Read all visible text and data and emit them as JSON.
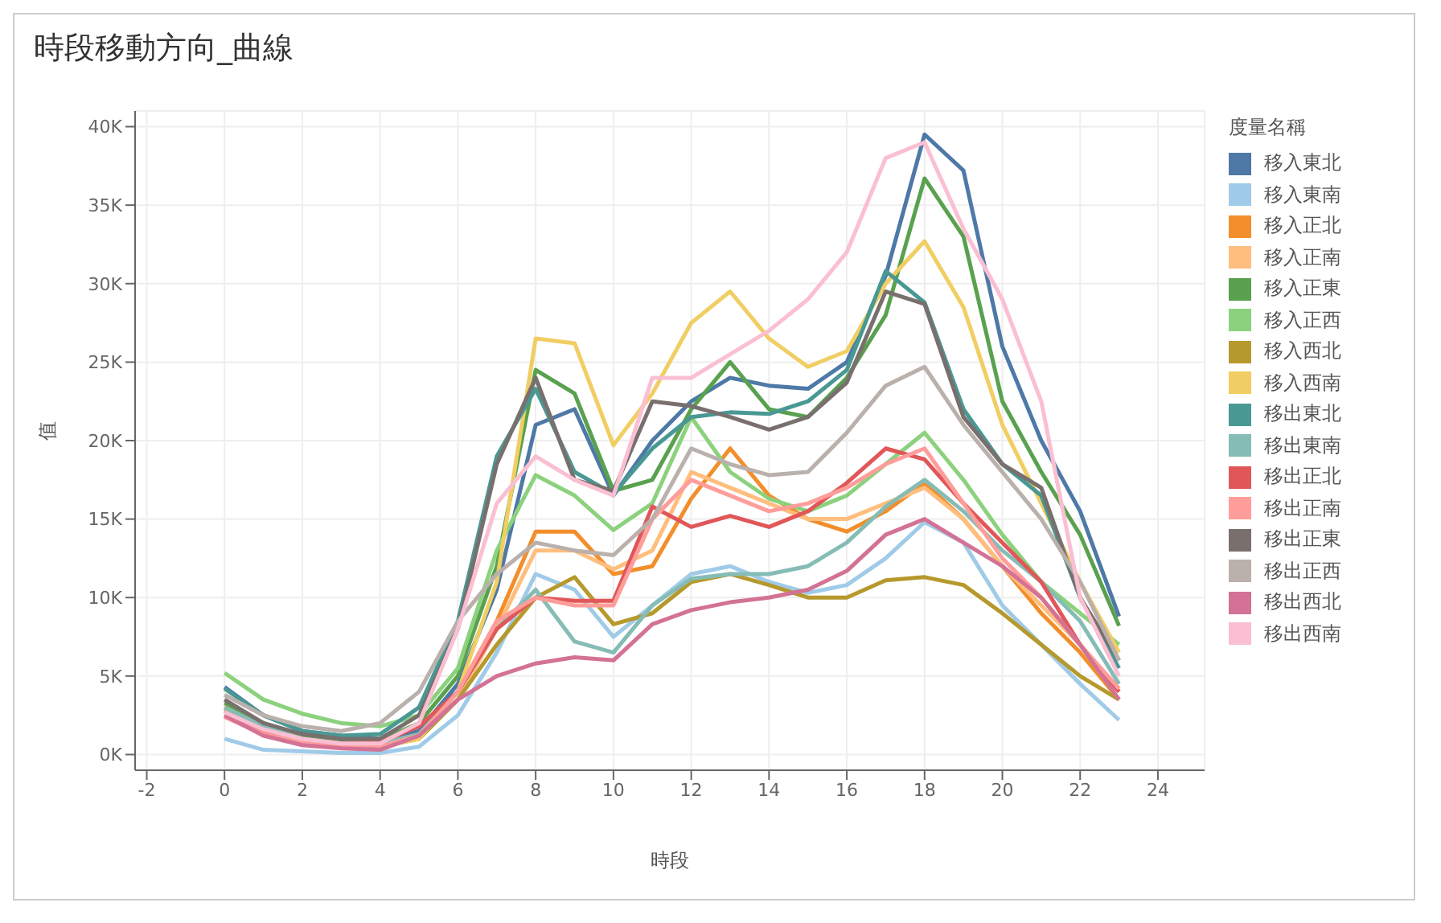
{
  "chart_data": {
    "type": "line",
    "title": "時段移動方向_曲線",
    "xlabel": "時段",
    "ylabel": "值",
    "legend_title": "度量名稱",
    "legend": "right",
    "grid": true,
    "marker": "none",
    "line_style": "solid",
    "x": [
      0,
      1,
      2,
      3,
      4,
      5,
      6,
      7,
      8,
      9,
      10,
      11,
      12,
      13,
      14,
      15,
      16,
      17,
      18,
      19,
      20,
      21,
      22,
      23
    ],
    "xlim": [
      -2.3,
      25.2
    ],
    "xticks": [
      -2,
      0,
      2,
      4,
      6,
      8,
      10,
      12,
      14,
      16,
      18,
      20,
      22,
      24
    ],
    "ylim": [
      -1000,
      41000
    ],
    "yticks": [
      {
        "value": 0,
        "label": "0K"
      },
      {
        "value": 5000,
        "label": "5K"
      },
      {
        "value": 10000,
        "label": "10K"
      },
      {
        "value": 15000,
        "label": "15K"
      },
      {
        "value": 20000,
        "label": "20K"
      },
      {
        "value": 25000,
        "label": "25K"
      },
      {
        "value": 30000,
        "label": "30K"
      },
      {
        "value": 35000,
        "label": "35K"
      },
      {
        "value": 40000,
        "label": "40K"
      }
    ],
    "series": [
      {
        "name": "移入東北",
        "color": "#4e79a7",
        "values": [
          4300,
          2500,
          1500,
          1200,
          1000,
          1500,
          4500,
          10500,
          21000,
          22000,
          16500,
          20000,
          22500,
          24000,
          23500,
          23300,
          25000,
          30500,
          39500,
          37200,
          26000,
          20000,
          15500,
          8800
        ]
      },
      {
        "name": "移入東南",
        "color": "#a0cbe8",
        "values": [
          1000,
          300,
          200,
          100,
          100,
          500,
          2500,
          6500,
          11500,
          10500,
          7500,
          9500,
          11500,
          12000,
          11000,
          10300,
          10800,
          12500,
          14800,
          13500,
          9500,
          7000,
          4500,
          2200
        ]
      },
      {
        "name": "移入正北",
        "color": "#f28e2b",
        "values": [
          3000,
          2000,
          1200,
          800,
          700,
          1300,
          4000,
          8500,
          14200,
          14200,
          11500,
          12000,
          16300,
          19500,
          16500,
          15000,
          14200,
          15500,
          17300,
          15000,
          12000,
          9000,
          6500,
          3500
        ]
      },
      {
        "name": "移入正南",
        "color": "#ffbe7d",
        "values": [
          3200,
          1800,
          1000,
          700,
          600,
          1200,
          3500,
          8000,
          13000,
          13000,
          11800,
          13000,
          18000,
          17000,
          16000,
          15000,
          15000,
          16000,
          17000,
          15000,
          12000,
          9500,
          7000,
          4000
        ]
      },
      {
        "name": "移入正東",
        "color": "#59a14f",
        "values": [
          3300,
          2000,
          1200,
          800,
          900,
          2000,
          5000,
          12000,
          24500,
          23000,
          16800,
          17500,
          22000,
          25000,
          22000,
          21500,
          24000,
          28000,
          36700,
          33000,
          22500,
          18000,
          14000,
          8200
        ]
      },
      {
        "name": "移入正西",
        "color": "#8cd17d",
        "values": [
          5200,
          3500,
          2600,
          2000,
          1800,
          2500,
          5500,
          13000,
          17800,
          16500,
          14300,
          16000,
          21500,
          18000,
          16300,
          15500,
          16500,
          18500,
          20500,
          17500,
          14000,
          11000,
          9000,
          7000
        ]
      },
      {
        "name": "移入西北",
        "color": "#b6992d",
        "values": [
          2800,
          1800,
          1000,
          700,
          500,
          1000,
          3500,
          7000,
          10000,
          11300,
          8300,
          9000,
          11000,
          11500,
          10800,
          10000,
          10000,
          11100,
          11300,
          10800,
          9000,
          7000,
          5000,
          3500
        ]
      },
      {
        "name": "移入西南",
        "color": "#f1ce63",
        "values": [
          2500,
          1500,
          800,
          600,
          500,
          1000,
          4000,
          11000,
          26500,
          26200,
          19700,
          23000,
          27500,
          29500,
          26500,
          24700,
          25700,
          30000,
          32700,
          28500,
          21000,
          16000,
          11000,
          6500
        ]
      },
      {
        "name": "移出東北",
        "color": "#499894",
        "values": [
          4200,
          2500,
          1500,
          1200,
          1300,
          3000,
          8500,
          19000,
          23300,
          18000,
          16600,
          19500,
          21500,
          21800,
          21700,
          22500,
          24500,
          30800,
          28800,
          22000,
          18500,
          16500,
          10000,
          5500
        ]
      },
      {
        "name": "移出東南",
        "color": "#86bcb6",
        "values": [
          3000,
          1800,
          1000,
          700,
          700,
          1300,
          4000,
          8000,
          10500,
          7200,
          6500,
          9500,
          11200,
          11500,
          11500,
          12000,
          13500,
          15800,
          17500,
          15500,
          13000,
          11000,
          8500,
          4500
        ]
      },
      {
        "name": "移出正北",
        "color": "#e15759",
        "values": [
          2500,
          1500,
          900,
          700,
          800,
          1800,
          4000,
          8000,
          10000,
          9800,
          9800,
          15800,
          14500,
          15200,
          14500,
          15500,
          17300,
          19500,
          18800,
          16000,
          13500,
          11000,
          7000,
          4000
        ]
      },
      {
        "name": "移出正南",
        "color": "#ff9d9a",
        "values": [
          2400,
          1300,
          800,
          600,
          500,
          1200,
          4000,
          8500,
          10000,
          9500,
          9500,
          15000,
          17500,
          16500,
          15500,
          16000,
          17000,
          18500,
          19500,
          16000,
          12500,
          10000,
          7000,
          4200
        ]
      },
      {
        "name": "移出正東",
        "color": "#79706e",
        "values": [
          3500,
          2000,
          1300,
          1000,
          1000,
          2500,
          8000,
          18500,
          24000,
          17500,
          16800,
          22500,
          22200,
          21500,
          20700,
          21500,
          23700,
          29500,
          28700,
          21500,
          18500,
          17000,
          10000,
          6000
        ]
      },
      {
        "name": "移出正西",
        "color": "#bab0ac",
        "values": [
          3800,
          2500,
          1800,
          1500,
          2000,
          4000,
          8500,
          11500,
          13500,
          13000,
          12700,
          15000,
          19500,
          18500,
          17800,
          18000,
          20500,
          23500,
          24700,
          21000,
          18000,
          15000,
          11000,
          6000
        ]
      },
      {
        "name": "移出西北",
        "color": "#d37295",
        "values": [
          2500,
          1200,
          600,
          400,
          300,
          1200,
          3500,
          5000,
          5800,
          6200,
          6000,
          8300,
          9200,
          9700,
          10000,
          10500,
          11700,
          14000,
          15000,
          13500,
          12000,
          10000,
          7000,
          3500
        ]
      },
      {
        "name": "移出西南",
        "color": "#fabfd2",
        "values": [
          2700,
          1600,
          1000,
          700,
          700,
          2000,
          8000,
          16000,
          19000,
          17500,
          16500,
          24000,
          24000,
          25500,
          27000,
          29000,
          32000,
          38000,
          39000,
          33500,
          29000,
          22500,
          10000,
          5000
        ]
      }
    ]
  }
}
